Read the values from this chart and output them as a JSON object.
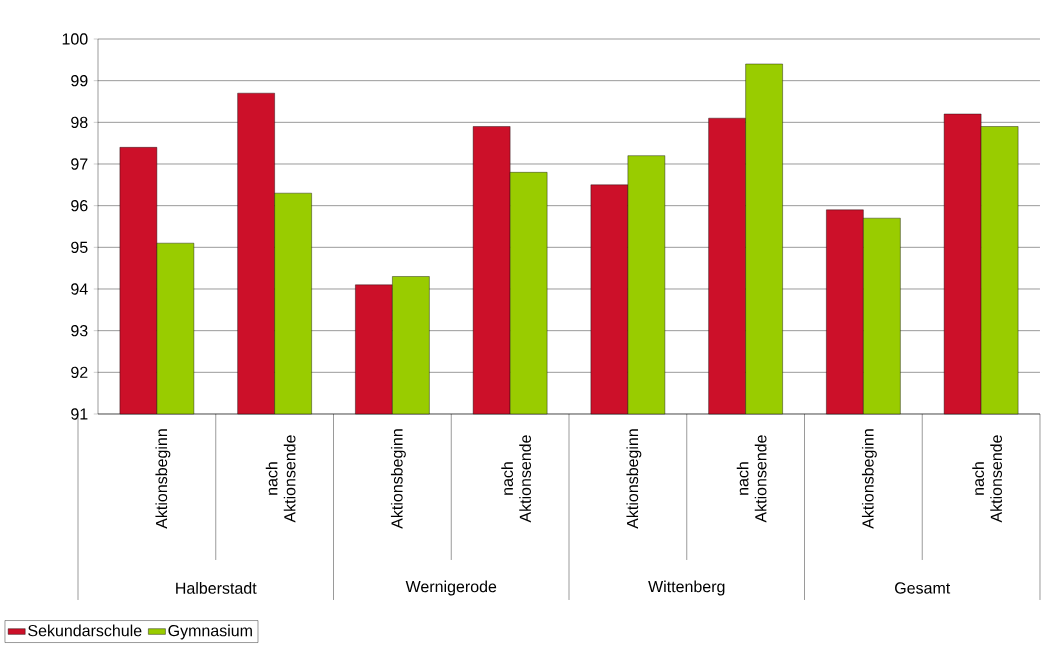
{
  "chart_data": {
    "type": "bar",
    "categories": [
      "Aktionsbeginn",
      "nach Aktionsende",
      "Aktionsbeginn",
      "nach Aktionsende",
      "Aktionsbeginn",
      "nach Aktionsende",
      "Aktionsbeginn",
      "nach Aktionsende"
    ],
    "annotations": [
      "Halberstadt",
      "Wernigerode",
      "Wittenberg",
      "Gesamt"
    ],
    "series": [
      {
        "name": "Sekundarschule",
        "color": "#cc1029",
        "values": [
          97.4,
          98.7,
          94.1,
          97.9,
          96.5,
          98.1,
          95.9,
          98.2
        ]
      },
      {
        "name": "Gymnasium",
        "color": "#99cc00",
        "values": [
          95.1,
          96.3,
          94.3,
          96.8,
          97.2,
          99.4,
          95.7,
          97.9
        ]
      }
    ],
    "ylim": [
      91,
      100
    ],
    "yticks": [
      91,
      92,
      93,
      94,
      95,
      96,
      97,
      98,
      99,
      100
    ],
    "grid": "y",
    "legend": "bottom left"
  }
}
